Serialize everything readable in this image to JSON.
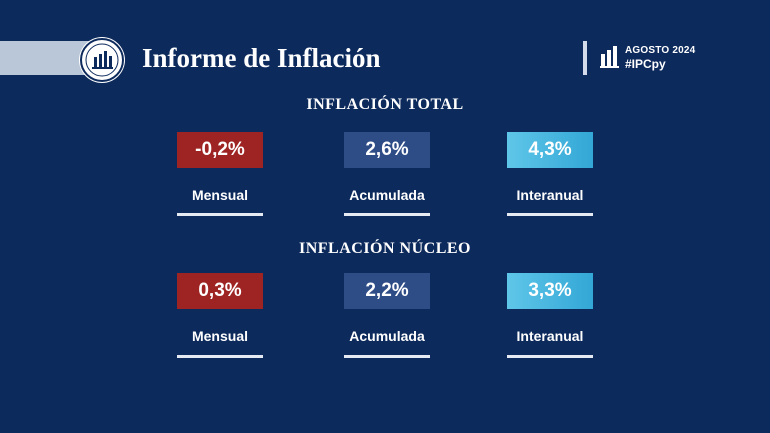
{
  "header": {
    "title": "Informe de Inflación",
    "period": "AGOSTO 2024",
    "hashtag": "#IPCpy",
    "seal_icon": "central-bank-seal",
    "bars_icon": "bar-chart-icon"
  },
  "sections": [
    {
      "title": "INFLACIÓN TOTAL",
      "items": [
        {
          "value": "-0,2%",
          "label": "Mensual",
          "color": "#9e2323"
        },
        {
          "value": "2,6%",
          "label": "Acumulada",
          "color": "#2e4c86"
        },
        {
          "value": "4,3%",
          "label": "Interanual",
          "color": "#45b7e0"
        }
      ]
    },
    {
      "title": "INFLACIÓN NÚCLEO",
      "items": [
        {
          "value": "0,3%",
          "label": "Mensual",
          "color": "#9e2323"
        },
        {
          "value": "2,2%",
          "label": "Acumulada",
          "color": "#2e4c86"
        },
        {
          "value": "3,3%",
          "label": "Interanual",
          "color": "#45b7e0"
        }
      ]
    }
  ]
}
